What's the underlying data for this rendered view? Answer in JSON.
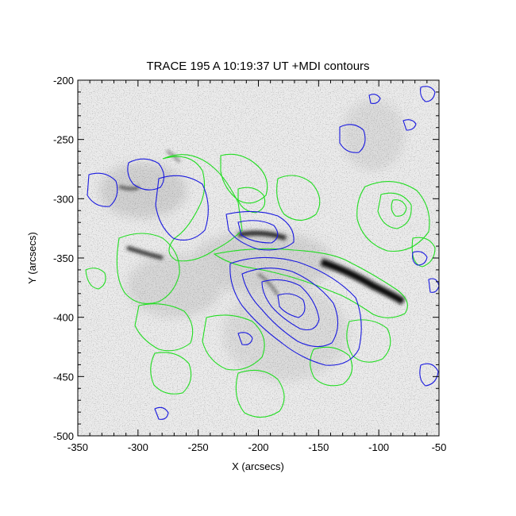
{
  "chart_data": {
    "type": "image",
    "title": "TRACE 195 A 10:19:37 UT +MDI contours",
    "xlabel": "X (arcsecs)",
    "ylabel": "Y (arcsecs)",
    "xlim": [
      -350,
      -50
    ],
    "ylim": [
      -500,
      -200
    ],
    "x_ticks": [
      "-350",
      "-300",
      "-250",
      "-200",
      "-150",
      "-100",
      "-50"
    ],
    "y_ticks": [
      "-200",
      "-250",
      "-300",
      "-350",
      "-400",
      "-450",
      "-500"
    ],
    "background": "grayscale inverted EUV image",
    "contour_series": [
      {
        "color": "#1a1adf"
      },
      {
        "color": "#22dd22"
      }
    ]
  }
}
